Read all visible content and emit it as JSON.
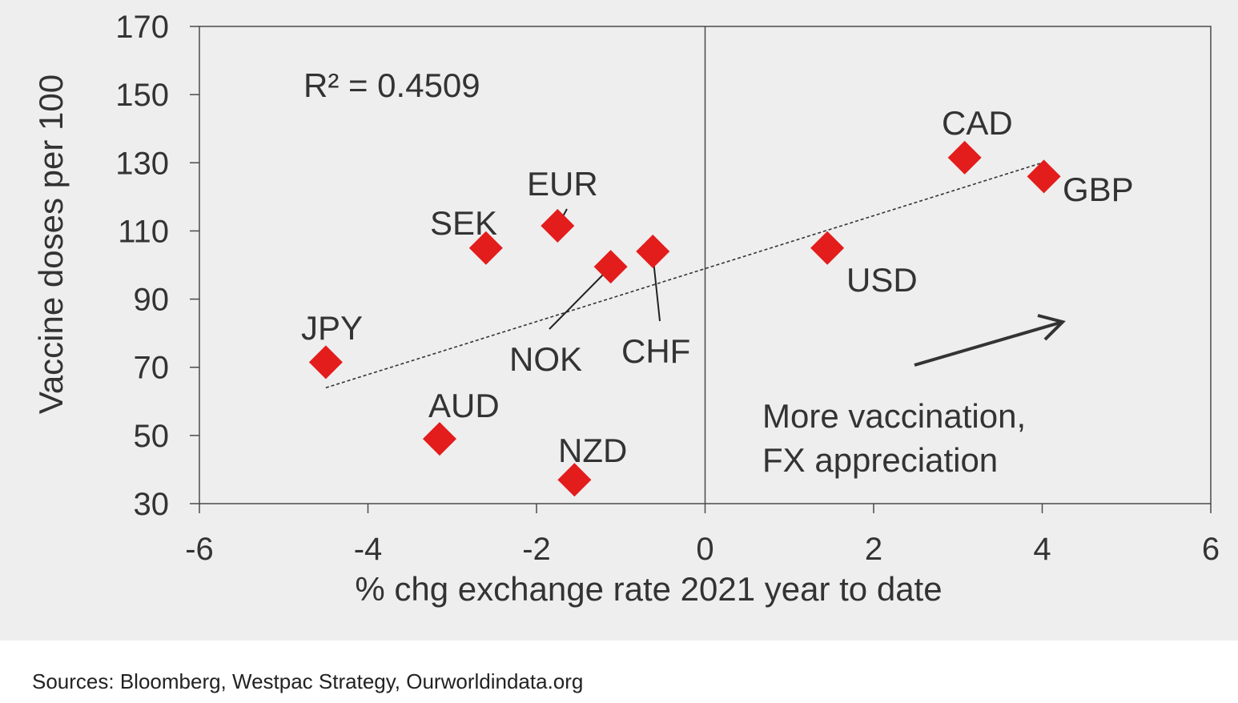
{
  "chart_data": {
    "type": "scatter",
    "xlabel": "% chg exchange rate 2021 year to date",
    "ylabel": "Vaccine doses per 100",
    "xlim": [
      -6,
      6
    ],
    "ylim": [
      30,
      170
    ],
    "xticks": [
      -6,
      -4,
      -2,
      0,
      2,
      4,
      6
    ],
    "yticks": [
      30,
      50,
      70,
      90,
      110,
      130,
      150,
      170
    ],
    "grid": false,
    "marker_color": "#e31c1c",
    "points": [
      {
        "label": "JPY",
        "x": -4.5,
        "y": 71.5
      },
      {
        "label": "AUD",
        "x": -3.15,
        "y": 49
      },
      {
        "label": "SEK",
        "x": -2.6,
        "y": 105
      },
      {
        "label": "EUR",
        "x": -1.75,
        "y": 111.5
      },
      {
        "label": "NZD",
        "x": -1.55,
        "y": 37
      },
      {
        "label": "NOK",
        "x": -1.12,
        "y": 99.5
      },
      {
        "label": "CHF",
        "x": -0.62,
        "y": 104
      },
      {
        "label": "USD",
        "x": 1.45,
        "y": 105
      },
      {
        "label": "CAD",
        "x": 3.08,
        "y": 131.5
      },
      {
        "label": "GBP",
        "x": 4.02,
        "y": 126
      }
    ],
    "trendline": {
      "x": [
        -4.5,
        4.0
      ],
      "y": [
        64,
        130
      ],
      "style": "dotted"
    },
    "r_squared": "R² = 0.4509",
    "annotation_lines": [
      "More vaccination,",
      "FX appreciation"
    ]
  },
  "source": "Sources: Bloomberg, Westpac Strategy, Ourworldindata.org"
}
